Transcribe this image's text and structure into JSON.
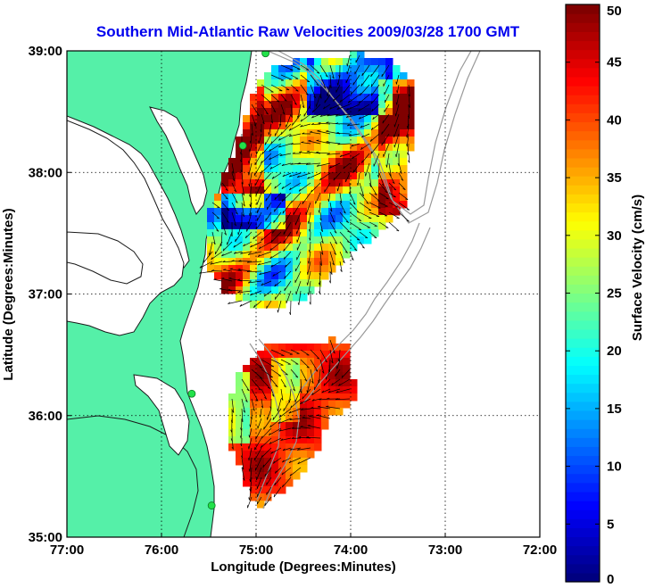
{
  "title": "Southern Mid-Atlantic Raw Velocities 2009/03/28 1700 GMT",
  "colors": {
    "title": "#0000ee",
    "land": "#55f0a8",
    "water": "#ffffff",
    "coast": "#1a1a1a",
    "bathymetry": "#999999",
    "station": "#22e24a"
  },
  "chart_data": {
    "type": "heatmap",
    "title": "Southern Mid-Atlantic Raw Velocities 2009/03/28 1700 GMT",
    "xlabel": "Longitude (Degrees:Minutes)",
    "ylabel": "Latitude (Degrees:Minutes)",
    "xlim": [
      -77,
      -72
    ],
    "ylim": [
      35,
      39
    ],
    "x_ticks": [
      {
        "value": -77,
        "label": "77:00"
      },
      {
        "value": -76,
        "label": "76:00"
      },
      {
        "value": -75,
        "label": "75:00"
      },
      {
        "value": -74,
        "label": "74:00"
      },
      {
        "value": -73,
        "label": "73:00"
      },
      {
        "value": -72,
        "label": "72:00"
      }
    ],
    "y_ticks": [
      {
        "value": 35,
        "label": "35:00"
      },
      {
        "value": 36,
        "label": "36:00"
      },
      {
        "value": 37,
        "label": "37:00"
      },
      {
        "value": 38,
        "label": "38:00"
      },
      {
        "value": 39,
        "label": "39:00"
      }
    ],
    "grid": true,
    "colorbar": {
      "label": "Surface Velocity (cm/s)",
      "min": 0,
      "max": 50,
      "ticks": [
        0,
        5,
        10,
        15,
        20,
        25,
        30,
        35,
        40,
        45,
        50
      ],
      "placement": "right"
    },
    "stations": [
      {
        "lon": -74.9,
        "lat": 38.98
      },
      {
        "lon": -75.14,
        "lat": 38.22
      },
      {
        "lon": -75.68,
        "lat": 36.18
      },
      {
        "lon": -75.47,
        "lat": 35.26
      }
    ]
  }
}
